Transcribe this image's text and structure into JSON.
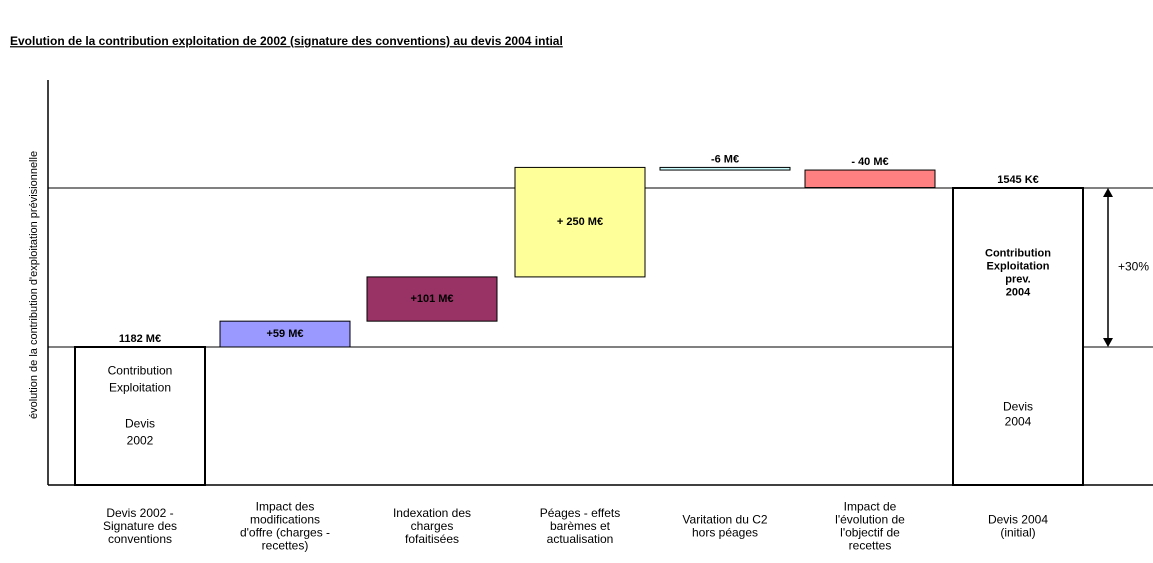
{
  "chart_data": {
    "type": "waterfall",
    "title": "Evolution de la contribution exploitation de 2002 (signature des conventions) au devis 2004 intial",
    "y_label": "évolution de la contribution d'exploitation prévisionnelle",
    "categories": [
      "Devis 2002 -\nSignature des\nconventions",
      "Impact des\nmodifications\nd'offre (charges -\nrecettes)",
      "Indexation des\ncharges\nfofaitisées",
      "Péages - effets\nbarèmes et\nactualisation",
      "Varitation du C2\nhors péages",
      "Impact de\nl'évolution de\nl'objectif de\nrecettes",
      "Devis 2004\n(initial)"
    ],
    "values": [
      1182,
      59,
      101,
      250,
      -6,
      -40,
      1545
    ],
    "value_labels": [
      "1182 M€",
      "+59 M€",
      "+101 M€",
      "+ 250 M€",
      "-6 M€",
      "- 40 M€",
      "1545 K€"
    ],
    "colors": [
      "#ffffff",
      "#9999ff",
      "#993366",
      "#ffff99",
      "#ccffff",
      "#ff8080",
      "#ffffff"
    ],
    "start_notes": [
      "Contribution\nExploitation",
      "Devis\n2002"
    ],
    "end_notes": [
      "Contribution\nExploitation\nprev.\n2004",
      "Devis\n2004"
    ],
    "change_label": "+30%"
  }
}
